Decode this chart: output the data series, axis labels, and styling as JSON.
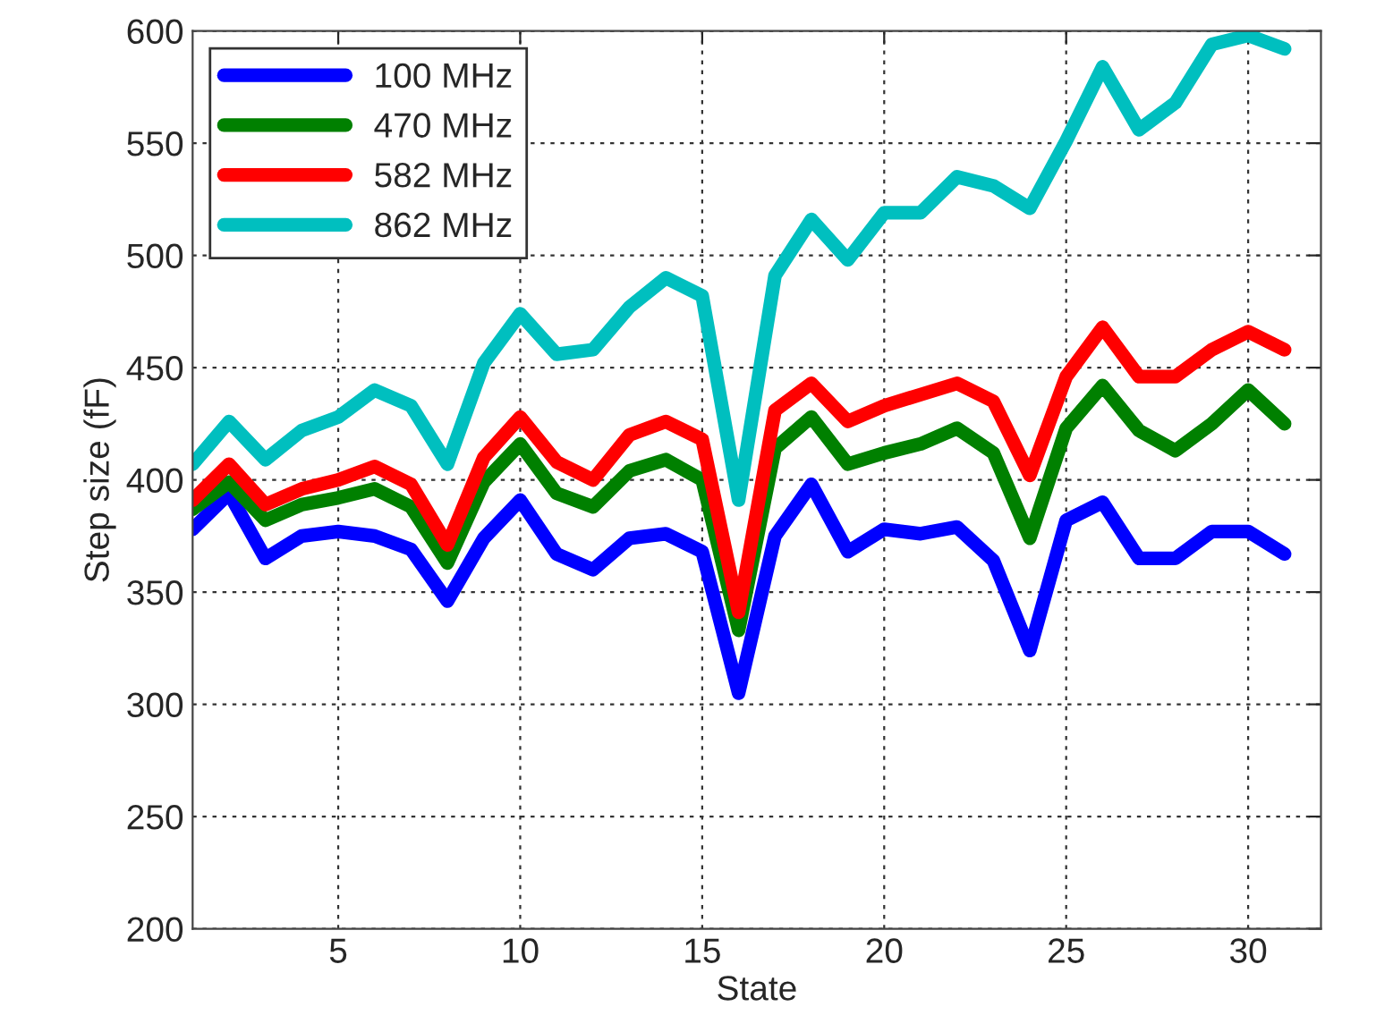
{
  "chart_data": {
    "type": "line",
    "xlabel": "State",
    "ylabel": "Step size (fF)",
    "x": [
      1,
      2,
      3,
      4,
      5,
      6,
      7,
      8,
      9,
      10,
      11,
      12,
      13,
      14,
      15,
      16,
      17,
      18,
      19,
      20,
      21,
      22,
      23,
      24,
      25,
      26,
      27,
      28,
      29,
      30,
      31
    ],
    "series": [
      {
        "name": "100 MHz",
        "color": "#0000ff",
        "values": [
          378,
          394,
          365,
          375,
          377,
          375,
          369,
          346,
          374,
          391,
          367,
          360,
          374,
          376,
          368,
          305,
          375,
          398,
          368,
          378,
          376,
          379,
          364,
          324,
          382,
          390,
          365,
          365,
          377,
          377,
          367
        ]
      },
      {
        "name": "470 MHz",
        "color": "#008000",
        "values": [
          387,
          399,
          382,
          389,
          392,
          396,
          388,
          363,
          399,
          416,
          394,
          388,
          404,
          409,
          400,
          333,
          414,
          428,
          407,
          412,
          416,
          423,
          412,
          374,
          423,
          442,
          422,
          413,
          425,
          440,
          425
        ]
      },
      {
        "name": "582 MHz",
        "color": "#ff0000",
        "values": [
          391,
          407,
          389,
          396,
          400,
          406,
          398,
          371,
          410,
          428,
          408,
          400,
          420,
          426,
          418,
          341,
          431,
          443,
          426,
          433,
          438,
          443,
          435,
          402,
          446,
          468,
          446,
          446,
          458,
          466,
          458
        ]
      },
      {
        "name": "862 MHz",
        "color": "#00bfbf",
        "values": [
          407,
          426,
          409,
          422,
          428,
          440,
          433,
          407,
          452,
          474,
          456,
          458,
          477,
          490,
          482,
          391,
          491,
          516,
          498,
          519,
          519,
          535,
          531,
          521,
          551,
          584,
          556,
          568,
          594,
          598,
          592
        ]
      }
    ],
    "xlim": [
      1,
      32
    ],
    "xticks": [
      5,
      10,
      15,
      20,
      25,
      30
    ],
    "ylim": [
      200,
      600
    ],
    "yticks": [
      200,
      250,
      300,
      350,
      400,
      450,
      500,
      550,
      600
    ],
    "grid": true,
    "legend": "top left",
    "line_style": "solid",
    "marker": "none"
  }
}
